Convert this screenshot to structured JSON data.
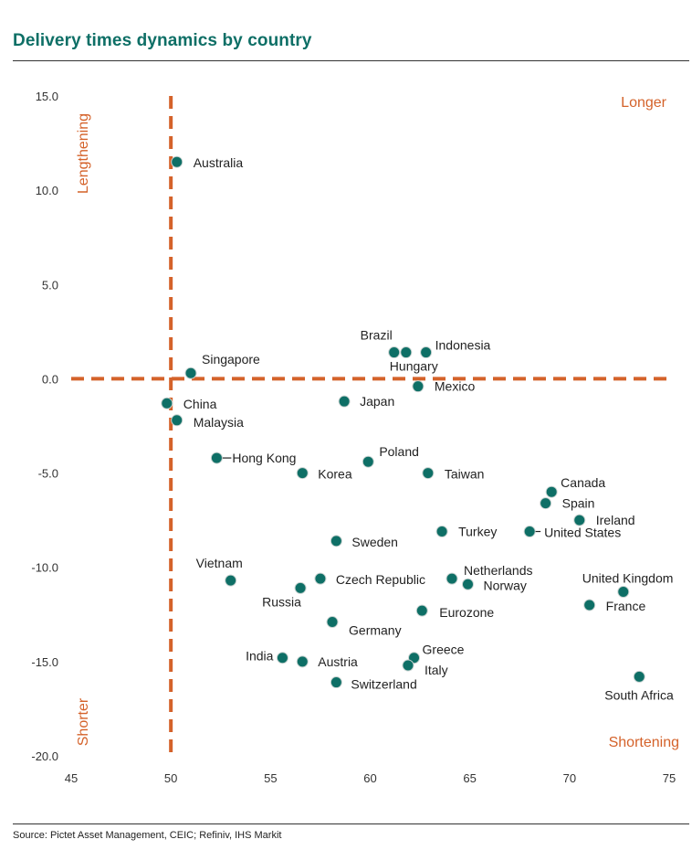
{
  "title": "Delivery times dynamics by country",
  "source": "Source: Pictet Asset Management, CEIC; Refiniv, IHS Markit",
  "colors": {
    "title": "#0e6f66",
    "point": "#0e6f66",
    "reference": "#d4622a"
  },
  "chart_data": {
    "type": "scatter",
    "title": "Delivery times dynamics by country",
    "xlabel": "",
    "ylabel": "",
    "xlim": [
      45,
      75
    ],
    "ylim": [
      -20,
      15
    ],
    "x_ticks": [
      "45",
      "50",
      "55",
      "60",
      "65",
      "70",
      "75"
    ],
    "y_ticks": [
      "15.0",
      "10.0",
      "5.0",
      "0.0",
      "-5.0",
      "-10.0",
      "-15.0",
      "-20.0"
    ],
    "reference_lines": {
      "x": 50,
      "y": 0
    },
    "quadrant_labels": {
      "top_left": "Lengthening",
      "top_right": "Longer",
      "bottom_left": "Shorter",
      "bottom_right": "Shortening"
    },
    "points": [
      {
        "label": "Australia",
        "x": 50.3,
        "y": 11.5
      },
      {
        "label": "Singapore",
        "x": 51.0,
        "y": 0.3
      },
      {
        "label": "China",
        "x": 49.8,
        "y": -1.3
      },
      {
        "label": "Malaysia",
        "x": 50.3,
        "y": -2.2
      },
      {
        "label": "Hong Kong",
        "x": 52.3,
        "y": -4.2
      },
      {
        "label": "Korea",
        "x": 56.6,
        "y": -5.0
      },
      {
        "label": "Poland",
        "x": 59.9,
        "y": -4.4
      },
      {
        "label": "Taiwan",
        "x": 62.9,
        "y": -5.0
      },
      {
        "label": "Japan",
        "x": 58.7,
        "y": -1.2
      },
      {
        "label": "Mexico",
        "x": 62.4,
        "y": -0.4
      },
      {
        "label": "Brazil",
        "x": 61.2,
        "y": 1.4
      },
      {
        "label": "Hungary",
        "x": 61.8,
        "y": 1.4
      },
      {
        "label": "Indonesia",
        "x": 62.8,
        "y": 1.4
      },
      {
        "label": "Canada",
        "x": 69.1,
        "y": -6.0
      },
      {
        "label": "Spain",
        "x": 68.8,
        "y": -6.6
      },
      {
        "label": "Ireland",
        "x": 70.5,
        "y": -7.5
      },
      {
        "label": "United States",
        "x": 68.0,
        "y": -8.1
      },
      {
        "label": "Turkey",
        "x": 63.6,
        "y": -8.1
      },
      {
        "label": "Sweden",
        "x": 58.3,
        "y": -8.6
      },
      {
        "label": "Vietnam",
        "x": 53.0,
        "y": -10.7
      },
      {
        "label": "Czech Republic",
        "x": 57.5,
        "y": -10.6
      },
      {
        "label": "Russia",
        "x": 56.5,
        "y": -11.1
      },
      {
        "label": "Netherlands",
        "x": 64.1,
        "y": -10.6
      },
      {
        "label": "Norway",
        "x": 64.9,
        "y": -10.9
      },
      {
        "label": "United Kingdom",
        "x": 72.7,
        "y": -11.3
      },
      {
        "label": "France",
        "x": 71.0,
        "y": -12.0
      },
      {
        "label": "Eurozone",
        "x": 62.6,
        "y": -12.3
      },
      {
        "label": "Germany",
        "x": 58.1,
        "y": -12.9
      },
      {
        "label": "India",
        "x": 55.6,
        "y": -14.8
      },
      {
        "label": "Austria",
        "x": 56.6,
        "y": -15.0
      },
      {
        "label": "Greece",
        "x": 62.2,
        "y": -14.8
      },
      {
        "label": "Italy",
        "x": 61.9,
        "y": -15.2
      },
      {
        "label": "Switzerland",
        "x": 58.3,
        "y": -16.1
      },
      {
        "label": "South Africa",
        "x": 73.5,
        "y": -15.8
      }
    ]
  }
}
